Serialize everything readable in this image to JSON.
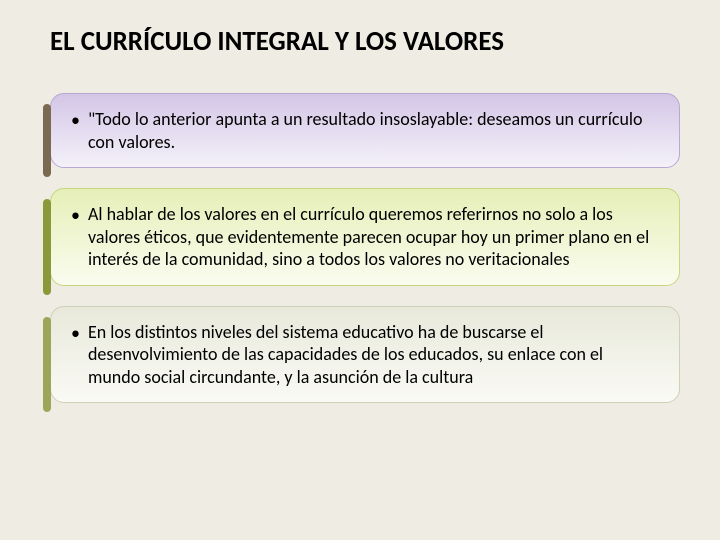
{
  "slide": {
    "background_color": "#efece3",
    "title": {
      "text": "EL CURRÍCULO INTEGRAL Y LOS VALORES",
      "fontsize": 27,
      "color": "#000000",
      "weight": "bold"
    },
    "card_text_fontsize": 18,
    "card_text_lineheight": 1.25,
    "bullet_char": "•",
    "cards": [
      {
        "text": "\"Todo lo anterior apunta a un resultado insoslayable: deseamos un currículo con valores.",
        "gradient_top": "#d3c6e6",
        "gradient_bottom": "#f4f1f9",
        "border_color": "#b8a8d4",
        "accent_color": "#7a6a52"
      },
      {
        "text": "Al hablar de los valores en el currículo queremos referirnos no solo a los valores éticos, que evidentemente parecen ocupar hoy un primer plano en el interés de la comunidad, sino a todos los valores no veritacionales",
        "gradient_top": "#e6efb8",
        "gradient_bottom": "#fafcef",
        "border_color": "#c7d77e",
        "accent_color": "#8a9a3a"
      },
      {
        "text": "En los distintos niveles del sistema educativo ha de buscarse el desenvolvimiento de las capacidades de los educados, su enlace con el mundo social circundante, y la asunción de la cultura",
        "gradient_top": "#e8e9da",
        "gradient_bottom": "#fafaf5",
        "border_color": "#cfd0b8",
        "accent_color": "#9ca65a"
      }
    ]
  }
}
